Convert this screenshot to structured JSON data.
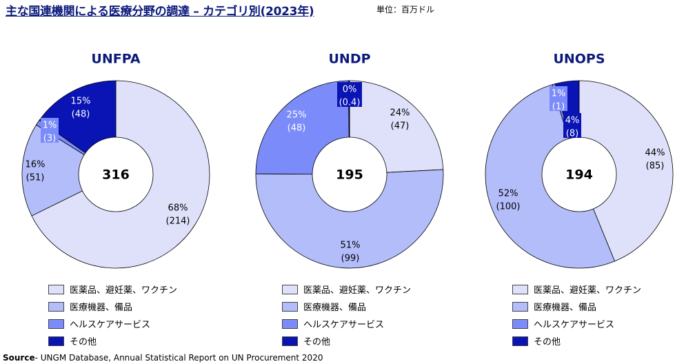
{
  "title": "主な国連機関による医療分野の調達 – カテゴリ別(2023年)",
  "unit": "単位：百万ドル",
  "source_prefix": "Source",
  "source_text": "- UNGM Database, Annual Statistical Report on UN Procurement 2020",
  "categories": [
    "医薬品、避妊薬、ワクチン",
    "医療機器、備品",
    "ヘルスケアサービス",
    "その他"
  ],
  "colors": [
    "#dfe1fb",
    "#b3bdfa",
    "#7b8cfa",
    "#0a14b4"
  ],
  "chart_data": [
    {
      "type": "pie",
      "title": "UNFPA",
      "total": "316",
      "slices": [
        {
          "category": "医薬品、避妊薬、ワクチン",
          "pct": 68,
          "value": 214,
          "pct_label": "68%",
          "value_label": "(214)"
        },
        {
          "category": "医療機器、備品",
          "pct": 16,
          "value": 51,
          "pct_label": "16%",
          "value_label": "(51)"
        },
        {
          "category": "ヘルスケアサービス",
          "pct": 1,
          "value": 3,
          "pct_label": "1%",
          "value_label": "(3)"
        },
        {
          "category": "その他",
          "pct": 15,
          "value": 48,
          "pct_label": "15%",
          "value_label": "(48)"
        }
      ]
    },
    {
      "type": "pie",
      "title": "UNDP",
      "total": "195",
      "slices": [
        {
          "category": "医薬品、避妊薬、ワクチン",
          "pct": 24,
          "value": 47,
          "pct_label": "24%",
          "value_label": "(47)"
        },
        {
          "category": "医療機器、備品",
          "pct": 51,
          "value": 99,
          "pct_label": "51%",
          "value_label": "(99)"
        },
        {
          "category": "ヘルスケアサービス",
          "pct": 25,
          "value": 48,
          "pct_label": "25%",
          "value_label": "(48)"
        },
        {
          "category": "その他",
          "pct": 0,
          "value": 0.4,
          "pct_label": "0%",
          "value_label": "(0.4)"
        }
      ]
    },
    {
      "type": "pie",
      "title": "UNOPS",
      "total": "194",
      "slices": [
        {
          "category": "医薬品、避妊薬、ワクチン",
          "pct": 44,
          "value": 85,
          "pct_label": "44%",
          "value_label": "(85)"
        },
        {
          "category": "医療機器、備品",
          "pct": 52,
          "value": 100,
          "pct_label": "52%",
          "value_label": "(100)"
        },
        {
          "category": "ヘルスケアサービス",
          "pct": 1,
          "value": 1,
          "pct_label": "1%",
          "value_label": "(1)"
        },
        {
          "category": "その他",
          "pct": 4,
          "value": 8,
          "pct_label": "4%",
          "value_label": "(8)"
        }
      ]
    }
  ]
}
